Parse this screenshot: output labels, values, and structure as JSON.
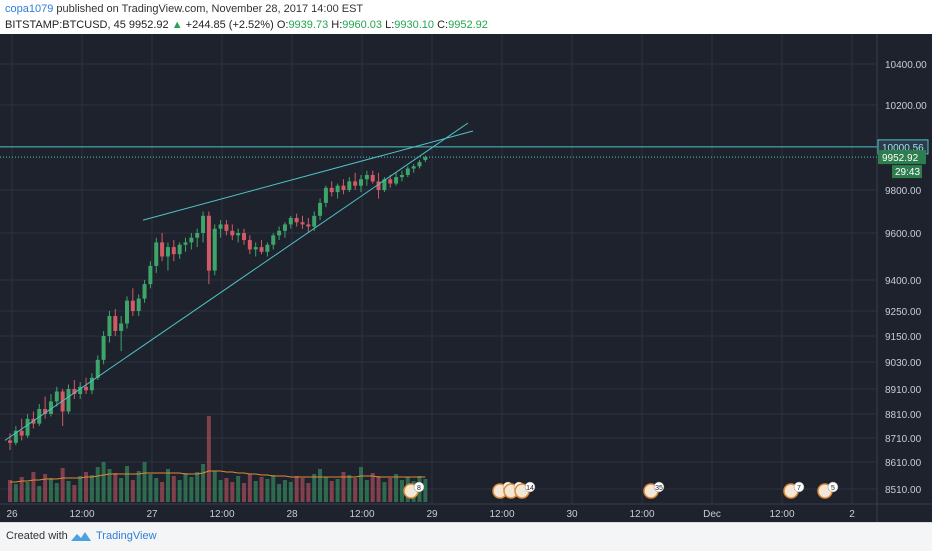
{
  "header": {
    "user": "copa1079",
    "published_text": "published on TradingView.com, November 28, 2017 14:00 EST",
    "symbol": "BITSTAMP:BTCUSD, 45",
    "last": "9952.92",
    "change": "+244.85 (+2.52%)",
    "open_label": "O:",
    "open": "9939.73",
    "high_label": "H:",
    "high": "9960.03",
    "low_label": "L:",
    "low": "9930.10",
    "close_label": "C:",
    "close": "9952.92"
  },
  "footer": {
    "created_with": "Created with",
    "brand": "TradingView"
  },
  "colors": {
    "background": "#1e222d",
    "up": "#3da56a",
    "down": "#d25a66",
    "line": "#4fc3c8",
    "volume_ma": "#e08a37",
    "grid": "#2c3140"
  },
  "chart_data": {
    "type": "candlestick",
    "y_ticks": [
      "10400.00",
      "10200.00",
      "9800.00",
      "9600.00",
      "9400.00",
      "9250.00",
      "9150.00",
      "9030.00",
      "8910.00",
      "8810.00",
      "8710.00",
      "8610.00",
      "8510.00"
    ],
    "x_ticks": [
      "26",
      "12:00",
      "27",
      "12:00",
      "28",
      "12:00",
      "29",
      "12:00",
      "30",
      "12:00",
      "Dec",
      "12:00",
      "2"
    ],
    "price_labels": [
      {
        "text": "10000.56",
        "value": 10000.56
      },
      {
        "text": "9952.92",
        "value": 9952.92
      },
      {
        "text": "29:43",
        "kind": "countdown"
      }
    ],
    "horizontal_lines": [
      10000.56,
      9952.92
    ],
    "candles": [
      [
        8700,
        8730,
        8660,
        8690
      ],
      [
        8690,
        8760,
        8680,
        8740
      ],
      [
        8740,
        8790,
        8700,
        8720
      ],
      [
        8720,
        8810,
        8710,
        8790
      ],
      [
        8790,
        8820,
        8750,
        8770
      ],
      [
        8770,
        8850,
        8760,
        8830
      ],
      [
        8830,
        8880,
        8790,
        8810
      ],
      [
        8810,
        8890,
        8800,
        8860
      ],
      [
        8860,
        8920,
        8840,
        8900
      ],
      [
        8900,
        8910,
        8760,
        8820
      ],
      [
        8820,
        8930,
        8810,
        8910
      ],
      [
        8910,
        8950,
        8870,
        8890
      ],
      [
        8890,
        8940,
        8870,
        8920
      ],
      [
        8920,
        8960,
        8890,
        8905
      ],
      [
        8905,
        8980,
        8890,
        8960
      ],
      [
        8960,
        9060,
        8950,
        9040
      ],
      [
        9040,
        9170,
        9020,
        9150
      ],
      [
        9150,
        9250,
        9120,
        9230
      ],
      [
        9230,
        9260,
        9150,
        9170
      ],
      [
        9170,
        9230,
        9080,
        9200
      ],
      [
        9200,
        9320,
        9180,
        9300
      ],
      [
        9300,
        9360,
        9230,
        9250
      ],
      [
        9250,
        9330,
        9230,
        9310
      ],
      [
        9310,
        9400,
        9290,
        9380
      ],
      [
        9380,
        9480,
        9360,
        9460
      ],
      [
        9460,
        9580,
        9430,
        9560
      ],
      [
        9560,
        9600,
        9480,
        9500
      ],
      [
        9500,
        9560,
        9440,
        9540
      ],
      [
        9540,
        9570,
        9480,
        9510
      ],
      [
        9510,
        9560,
        9490,
        9550
      ],
      [
        9550,
        9580,
        9520,
        9560
      ],
      [
        9560,
        9600,
        9530,
        9580
      ],
      [
        9580,
        9620,
        9540,
        9600
      ],
      [
        9600,
        9700,
        9560,
        9680
      ],
      [
        9680,
        9700,
        9380,
        9440
      ],
      [
        9440,
        9640,
        9420,
        9620
      ],
      [
        9620,
        9660,
        9580,
        9640
      ],
      [
        9640,
        9660,
        9590,
        9610
      ],
      [
        9610,
        9640,
        9570,
        9590
      ],
      [
        9590,
        9620,
        9560,
        9600
      ],
      [
        9600,
        9620,
        9550,
        9570
      ],
      [
        9570,
        9590,
        9510,
        9530
      ],
      [
        9530,
        9560,
        9500,
        9540
      ],
      [
        9540,
        9570,
        9510,
        9520
      ],
      [
        9520,
        9560,
        9500,
        9550
      ],
      [
        9550,
        9600,
        9530,
        9590
      ],
      [
        9590,
        9630,
        9570,
        9610
      ],
      [
        9610,
        9650,
        9580,
        9640
      ],
      [
        9640,
        9680,
        9620,
        9670
      ],
      [
        9670,
        9690,
        9630,
        9650
      ],
      [
        9650,
        9680,
        9620,
        9640
      ],
      [
        9640,
        9670,
        9600,
        9630
      ],
      [
        9630,
        9700,
        9610,
        9680
      ],
      [
        9680,
        9760,
        9660,
        9740
      ],
      [
        9740,
        9820,
        9720,
        9810
      ],
      [
        9810,
        9840,
        9770,
        9790
      ],
      [
        9790,
        9830,
        9760,
        9820
      ],
      [
        9820,
        9850,
        9780,
        9800
      ],
      [
        9800,
        9860,
        9790,
        9840
      ],
      [
        9840,
        9880,
        9800,
        9820
      ],
      [
        9820,
        9870,
        9790,
        9850
      ],
      [
        9850,
        9890,
        9820,
        9870
      ],
      [
        9870,
        9890,
        9830,
        9840
      ],
      [
        9840,
        9880,
        9760,
        9800
      ],
      [
        9800,
        9860,
        9790,
        9850
      ],
      [
        9850,
        9870,
        9810,
        9830
      ],
      [
        9830,
        9880,
        9820,
        9860
      ],
      [
        9860,
        9890,
        9840,
        9870
      ],
      [
        9870,
        9910,
        9860,
        9900
      ],
      [
        9900,
        9920,
        9880,
        9910
      ],
      [
        9910,
        9940,
        9900,
        9930
      ],
      [
        9939.73,
        9960.03,
        9930.1,
        9952.92
      ]
    ],
    "volume": [
      22,
      18,
      25,
      20,
      30,
      16,
      28,
      24,
      19,
      34,
      21,
      17,
      26,
      30,
      27,
      35,
      40,
      33,
      29,
      24,
      36,
      22,
      31,
      40,
      28,
      24,
      20,
      33,
      26,
      22,
      29,
      25,
      30,
      38,
      86,
      31,
      22,
      24,
      20,
      26,
      19,
      28,
      21,
      25,
      23,
      27,
      18,
      22,
      20,
      26,
      24,
      19,
      28,
      33,
      25,
      21,
      23,
      30,
      27,
      24,
      35,
      22,
      29,
      26,
      20,
      24,
      28,
      22,
      25,
      21,
      26,
      23
    ],
    "volume_ma": [
      20,
      20,
      21,
      21,
      22,
      22,
      23,
      23,
      23,
      24,
      24,
      24,
      24,
      25,
      25,
      26,
      27,
      28,
      28,
      28,
      28,
      28,
      28,
      29,
      29,
      29,
      29,
      29,
      29,
      29,
      28,
      28,
      28,
      29,
      31,
      31,
      31,
      30,
      30,
      29,
      29,
      28,
      28,
      27,
      27,
      26,
      26,
      26,
      25,
      25,
      25,
      25,
      25,
      25,
      25,
      25,
      25,
      25,
      25,
      25,
      26,
      26,
      26,
      25,
      25,
      25,
      25,
      25,
      25,
      25,
      25,
      25
    ],
    "trendlines": [
      {
        "from": [
          "26 01:00",
          8700
        ],
        "to": [
          "29 00:00",
          10060
        ]
      },
      {
        "from": [
          "26 23:00",
          9660
        ],
        "to": [
          "29 05:00",
          10070
        ]
      }
    ],
    "event_badges": [
      "8",
      "5",
      "7",
      "14",
      "35",
      "7",
      "5"
    ]
  }
}
